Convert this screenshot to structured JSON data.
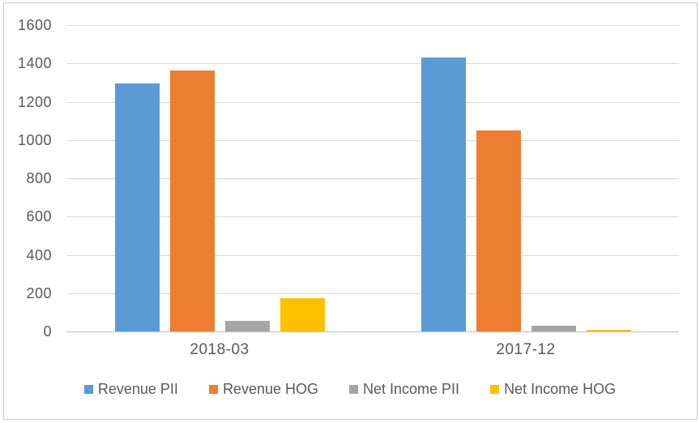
{
  "chart_data": {
    "type": "bar",
    "title": "",
    "categories": [
      "2018-03",
      "2017-12"
    ],
    "series": [
      {
        "name": "Revenue PII",
        "color": "#5B9BD5",
        "values": [
          1295,
          1430
        ]
      },
      {
        "name": "Revenue HOG",
        "color": "#ED7D31",
        "values": [
          1365,
          1050
        ]
      },
      {
        "name": "Net Income PII",
        "color": "#A5A5A5",
        "values": [
          55,
          30
        ]
      },
      {
        "name": "Net Income HOG",
        "color": "#FFC000",
        "values": [
          175,
          10
        ]
      }
    ],
    "ylim": [
      0,
      1600
    ],
    "ytick_interval": 200,
    "yticks": [
      0,
      200,
      400,
      600,
      800,
      1000,
      1200,
      1400,
      1600
    ],
    "grid": true,
    "legend_position": "bottom",
    "xlabel": "",
    "ylabel": ""
  },
  "colors": {
    "axis_text": "#595959",
    "gridline": "#d9d9d9",
    "axis_line": "#bfbfbf",
    "frame_border": "#c9c9c9",
    "background": "#ffffff"
  }
}
